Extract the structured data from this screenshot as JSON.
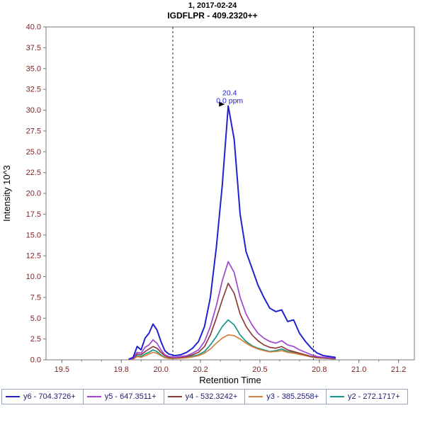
{
  "title": {
    "line1": "1, 2017-02-24",
    "line2": "IGDFLPR - 409.2320++"
  },
  "annotation": {
    "retention_time_label": "20.4",
    "ppm_label": "0.0 ppm",
    "peak_x": 20.34,
    "peak_y": 30.5
  },
  "colors": {
    "tick_label": "#842121",
    "axis_line": "#777777",
    "boundary_line": "#333333",
    "annotation_text": "#2222cc",
    "legend_text": "#1c1c6e",
    "legend_border": "#95a4b8"
  },
  "chart_data": {
    "type": "line",
    "title": "IGDFLPR - 409.2320++",
    "subtitle": "1, 2017-02-24",
    "xlabel": "Retention Time",
    "ylabel": "Intensity 10^3",
    "xlim": [
      19.42,
      21.28
    ],
    "ylim": [
      0,
      40
    ],
    "x_ticks": [
      19.5,
      19.8,
      20.0,
      20.2,
      20.5,
      20.8,
      21.0,
      21.2
    ],
    "x_tick_labels": [
      "19.5",
      "19.8",
      "20.0",
      "20.2",
      "20.5",
      "20.8",
      "21.0",
      "21.2"
    ],
    "y_tick_start": 0,
    "y_tick_end": 40,
    "y_tick_step": 2.5,
    "grid": false,
    "legend_position": "bottom",
    "integration_boundaries": [
      20.06,
      20.77
    ],
    "x": [
      19.84,
      19.86,
      19.88,
      19.9,
      19.92,
      19.94,
      19.96,
      19.98,
      20.0,
      20.02,
      20.04,
      20.07,
      20.1,
      20.13,
      20.16,
      20.19,
      20.22,
      20.25,
      20.28,
      20.31,
      20.34,
      20.37,
      20.4,
      20.43,
      20.46,
      20.49,
      20.52,
      20.55,
      20.58,
      20.61,
      20.64,
      20.67,
      20.7,
      20.73,
      20.76,
      20.79,
      20.82,
      20.85,
      20.88
    ],
    "series": [
      {
        "name": "y6 - 704.3726+",
        "color": "#2222cc",
        "values": [
          0.1,
          0.3,
          1.6,
          1.2,
          2.6,
          3.2,
          4.3,
          3.6,
          2.2,
          1.1,
          0.7,
          0.5,
          0.6,
          0.9,
          1.4,
          2.2,
          4.0,
          7.5,
          13.5,
          21.0,
          30.5,
          26.5,
          17.5,
          13.0,
          11.0,
          9.0,
          7.5,
          6.2,
          5.8,
          6.0,
          4.6,
          4.8,
          3.2,
          2.2,
          1.4,
          0.8,
          0.5,
          0.4,
          0.3
        ]
      },
      {
        "name": "y5 - 647.3511+",
        "color": "#9f44d3",
        "values": [
          0.05,
          0.2,
          0.9,
          0.8,
          1.5,
          1.8,
          2.4,
          2.0,
          1.2,
          0.6,
          0.4,
          0.3,
          0.4,
          0.5,
          0.8,
          1.2,
          2.2,
          4.0,
          6.5,
          9.5,
          11.8,
          10.5,
          7.5,
          5.5,
          4.2,
          3.2,
          2.6,
          2.2,
          2.0,
          2.3,
          1.8,
          1.6,
          1.2,
          0.9,
          0.6,
          0.4,
          0.3,
          0.25,
          0.2
        ]
      },
      {
        "name": "y4 - 532.3242+",
        "color": "#8e3b3b",
        "values": [
          0.05,
          0.15,
          0.7,
          0.6,
          1.0,
          1.3,
          1.6,
          1.4,
          0.9,
          0.5,
          0.3,
          0.25,
          0.3,
          0.4,
          0.6,
          0.9,
          1.6,
          3.0,
          5.0,
          7.2,
          9.2,
          8.0,
          5.5,
          4.0,
          3.0,
          2.3,
          1.8,
          1.5,
          1.4,
          1.6,
          1.2,
          1.0,
          0.8,
          0.6,
          0.4,
          0.3,
          0.25,
          0.2,
          0.15
        ]
      },
      {
        "name": "y3 - 385.2558+",
        "color": "#d4813b",
        "values": [
          0.02,
          0.08,
          0.4,
          0.3,
          0.5,
          0.7,
          0.9,
          0.8,
          0.5,
          0.25,
          0.15,
          0.15,
          0.2,
          0.25,
          0.35,
          0.5,
          0.8,
          1.3,
          2.0,
          2.6,
          3.0,
          2.9,
          2.5,
          2.0,
          1.6,
          1.3,
          1.1,
          0.95,
          1.0,
          1.1,
          0.9,
          0.8,
          0.65,
          0.5,
          0.35,
          0.25,
          0.2,
          0.15,
          0.1
        ]
      },
      {
        "name": "y2 - 272.1717+",
        "color": "#17968c",
        "values": [
          0.03,
          0.1,
          0.5,
          0.4,
          0.7,
          0.9,
          1.2,
          1.0,
          0.6,
          0.3,
          0.2,
          0.2,
          0.25,
          0.3,
          0.45,
          0.6,
          1.0,
          1.8,
          2.8,
          4.0,
          4.8,
          4.2,
          3.0,
          2.2,
          1.7,
          1.4,
          1.2,
          1.0,
          1.1,
          1.3,
          1.0,
          0.9,
          0.7,
          0.5,
          0.35,
          0.25,
          0.2,
          0.15,
          0.1
        ]
      }
    ]
  }
}
